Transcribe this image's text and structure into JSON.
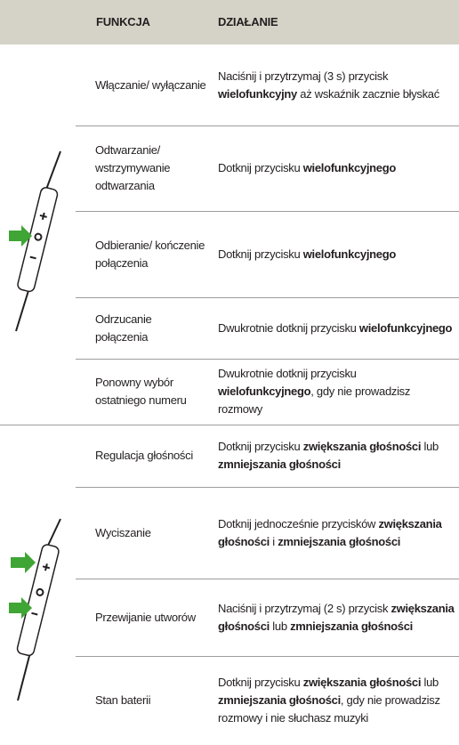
{
  "header": {
    "function": "FUNKCJA",
    "action": "DZIAŁANIE"
  },
  "groups": [
    {
      "rows": [
        {
          "function": "Włączanie/ wyłączanie",
          "action": [
            {
              "text": "Naciśnij i przytrzymaj (3 s) przycisk ",
              "bold": false
            },
            {
              "text": "wielofunkcyjny",
              "bold": true
            },
            {
              "text": " aż wskaźnik zacznie błyskać",
              "bold": false
            }
          ]
        },
        {
          "function": "Odtwarzanie/ wstrzymywanie odtwarzania",
          "action": [
            {
              "text": "Dotknij przycisku ",
              "bold": false
            },
            {
              "text": "wielofunkcyjnego",
              "bold": true
            }
          ]
        },
        {
          "function": "Odbieranie/ kończenie połączenia",
          "action": [
            {
              "text": "Dotknij przycisku ",
              "bold": false
            },
            {
              "text": "wielofunkcyjnego",
              "bold": true
            }
          ]
        },
        {
          "function": "Odrzucanie połączenia",
          "action": [
            {
              "text": "Dwukrotnie dotknij przycisku ",
              "bold": false
            },
            {
              "text": "wielofunkcyjnego",
              "bold": true
            }
          ]
        },
        {
          "function": "Ponowny wybór ostatniego numeru",
          "action": [
            {
              "text": "Dwukrotnie dotknij przycisku ",
              "bold": false
            },
            {
              "text": "wielofunkcyjnego",
              "bold": true
            },
            {
              "text": ", gdy nie prowadzisz rozmowy",
              "bold": false
            }
          ]
        }
      ]
    },
    {
      "rows": [
        {
          "function": "Regulacja głośności",
          "action": [
            {
              "text": "Dotknij przycisku ",
              "bold": false
            },
            {
              "text": "zwiększania głośności",
              "bold": true
            },
            {
              "text": " lub ",
              "bold": false
            },
            {
              "text": "zmniejszania głośności",
              "bold": true
            }
          ]
        },
        {
          "function": "Wyciszanie",
          "action": [
            {
              "text": "Dotknij jednocześnie przycisków ",
              "bold": false
            },
            {
              "text": "zwiększania głośności",
              "bold": true
            },
            {
              "text": " i ",
              "bold": false
            },
            {
              "text": "zmniejszania głośności",
              "bold": true
            }
          ]
        },
        {
          "function": "Przewijanie utworów",
          "action": [
            {
              "text": "Naciśnij i przytrzymaj (2 s) przycisk ",
              "bold": false
            },
            {
              "text": "zwiększania głośności",
              "bold": true
            },
            {
              "text": " lub ",
              "bold": false
            },
            {
              "text": "zmniejszania głośności",
              "bold": true
            }
          ]
        },
        {
          "function": "Stan baterii",
          "action": [
            {
              "text": "Dotknij przycisku ",
              "bold": false
            },
            {
              "text": "zwiększania głośności",
              "bold": true
            },
            {
              "text": " lub ",
              "bold": false
            },
            {
              "text": "zmniejszania głośności",
              "bold": true
            },
            {
              "text": ", gdy nie prowadzisz rozmowy i nie słuchasz muzyki",
              "bold": false
            }
          ]
        }
      ]
    }
  ]
}
